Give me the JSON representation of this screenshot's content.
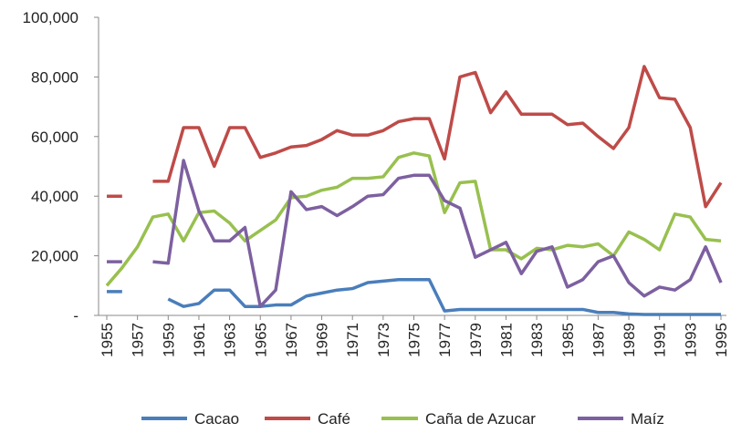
{
  "chart_data": {
    "type": "line",
    "x": [
      1955,
      1956,
      1957,
      1958,
      1959,
      1960,
      1961,
      1962,
      1963,
      1964,
      1965,
      1966,
      1967,
      1968,
      1969,
      1970,
      1971,
      1972,
      1973,
      1974,
      1975,
      1976,
      1977,
      1978,
      1979,
      1980,
      1981,
      1982,
      1983,
      1984,
      1985,
      1986,
      1987,
      1988,
      1989,
      1990,
      1991,
      1992,
      1993,
      1994,
      1995
    ],
    "xlim": [
      1955,
      1995
    ],
    "xticks": [
      1955,
      1957,
      1959,
      1961,
      1963,
      1965,
      1967,
      1969,
      1971,
      1973,
      1975,
      1977,
      1979,
      1981,
      1983,
      1985,
      1987,
      1989,
      1991,
      1993,
      1995
    ],
    "ylim": [
      0,
      100000
    ],
    "yticks": [
      {
        "value": 0,
        "label": "-"
      },
      {
        "value": 20000,
        "label": "20,000"
      },
      {
        "value": 40000,
        "label": "40,000"
      },
      {
        "value": 60000,
        "label": "60,000"
      },
      {
        "value": 80000,
        "label": "80,000"
      },
      {
        "value": 100000,
        "label": "100,000"
      }
    ],
    "legend": "bottom",
    "series": [
      {
        "name": "Cacao",
        "color": "#4a7ebb",
        "values": [
          8000,
          8000,
          null,
          null,
          5500,
          3000,
          4000,
          8500,
          8500,
          3000,
          3000,
          3500,
          3500,
          6500,
          7500,
          8500,
          9000,
          11000,
          11500,
          12000,
          12000,
          12000,
          1500,
          2000,
          2000,
          2000,
          2000,
          2000,
          2000,
          2000,
          2000,
          2000,
          1000,
          1000,
          500,
          300,
          300,
          300,
          300,
          300,
          300
        ]
      },
      {
        "name": "Café",
        "color": "#be4b48",
        "values": [
          40000,
          40000,
          null,
          45000,
          45000,
          63000,
          63000,
          50000,
          63000,
          63000,
          53000,
          54500,
          56500,
          57000,
          59000,
          62000,
          60500,
          60500,
          62000,
          65000,
          66000,
          66000,
          52500,
          80000,
          81500,
          68000,
          75000,
          67500,
          67500,
          67500,
          64000,
          64500,
          60000,
          56000,
          63000,
          83500,
          73000,
          72500,
          63000,
          36500,
          44500
        ]
      },
      {
        "name": "Caña de Azucar",
        "color": "#98c04f",
        "values": [
          10000,
          16000,
          23000,
          33000,
          34000,
          25000,
          34500,
          35000,
          31000,
          25000,
          28500,
          32000,
          39500,
          40000,
          42000,
          43000,
          46000,
          46000,
          46500,
          53000,
          54500,
          53500,
          34500,
          44500,
          45000,
          22000,
          22000,
          19000,
          22500,
          22000,
          23500,
          23000,
          24000,
          20000,
          28000,
          25500,
          22000,
          34000,
          33000,
          25500,
          25000
        ]
      },
      {
        "name": "Maíz",
        "color": "#7d60a0",
        "values": [
          18000,
          18000,
          null,
          18000,
          17500,
          52000,
          35000,
          25000,
          25000,
          29500,
          3000,
          8500,
          41500,
          35500,
          36500,
          33500,
          36500,
          40000,
          40500,
          46000,
          47000,
          47000,
          38500,
          36000,
          19500,
          22000,
          24500,
          14000,
          21500,
          23000,
          9500,
          12000,
          18000,
          20000,
          11000,
          6500,
          9500,
          8500,
          12000,
          23000,
          11000
        ]
      }
    ]
  }
}
